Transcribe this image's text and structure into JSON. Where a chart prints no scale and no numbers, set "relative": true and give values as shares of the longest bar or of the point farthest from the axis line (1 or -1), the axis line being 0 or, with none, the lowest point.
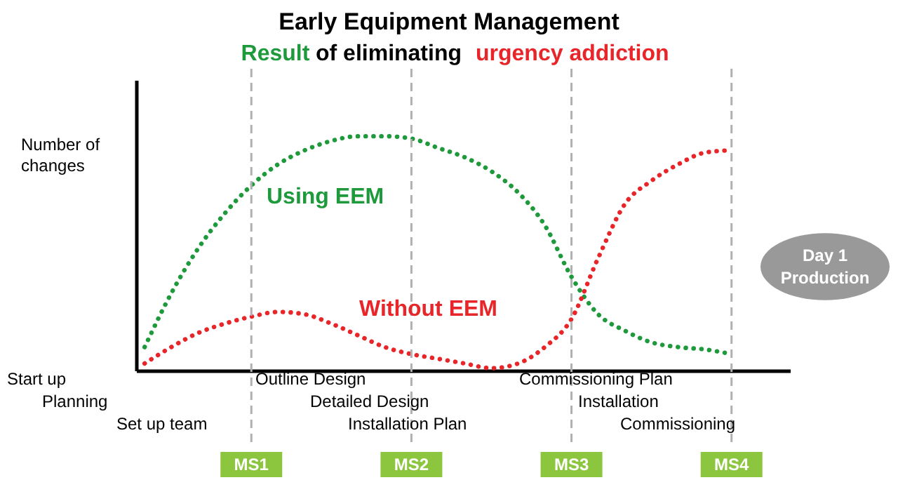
{
  "chart_data": {
    "type": "line",
    "title": "Early Equipment Management",
    "subtitle": "Result of eliminating urgency addiction",
    "ylabel": "Number of changes",
    "relative": true,
    "line_style": "dotted",
    "categories": [
      null,
      null,
      null,
      null,
      null,
      null,
      null,
      null,
      null,
      null,
      null,
      null,
      null,
      null,
      null,
      null,
      null,
      null,
      null,
      null,
      null,
      null,
      null
    ],
    "series": [
      {
        "name": "Using EEM",
        "color": "#1e9a3c",
        "values": [
          0.1,
          0.33,
          0.52,
          0.67,
          0.79,
          0.88,
          0.94,
          0.98,
          1.0,
          1.0,
          0.99,
          0.95,
          0.91,
          0.85,
          0.76,
          0.62,
          0.4,
          0.24,
          0.17,
          0.12,
          0.1,
          0.09,
          0.07
        ]
      },
      {
        "name": "Without EEM",
        "color": "#e8262a",
        "values": [
          0.03,
          0.1,
          0.16,
          0.2,
          0.23,
          0.25,
          0.24,
          0.2,
          0.15,
          0.1,
          0.07,
          0.05,
          0.03,
          0.01,
          0.03,
          0.1,
          0.22,
          0.48,
          0.71,
          0.81,
          0.88,
          0.93,
          0.94
        ]
      }
    ],
    "grid": "x",
    "annotations": [
      "Start up",
      "Planning",
      "Set up team",
      "Outline Design",
      "Detailed Design",
      "Installation Plan",
      "Commissioning Plan",
      "Installation",
      "Commissioning",
      "MS1",
      "MS2",
      "MS3",
      "MS4",
      "Day 1 Production"
    ]
  }
}
